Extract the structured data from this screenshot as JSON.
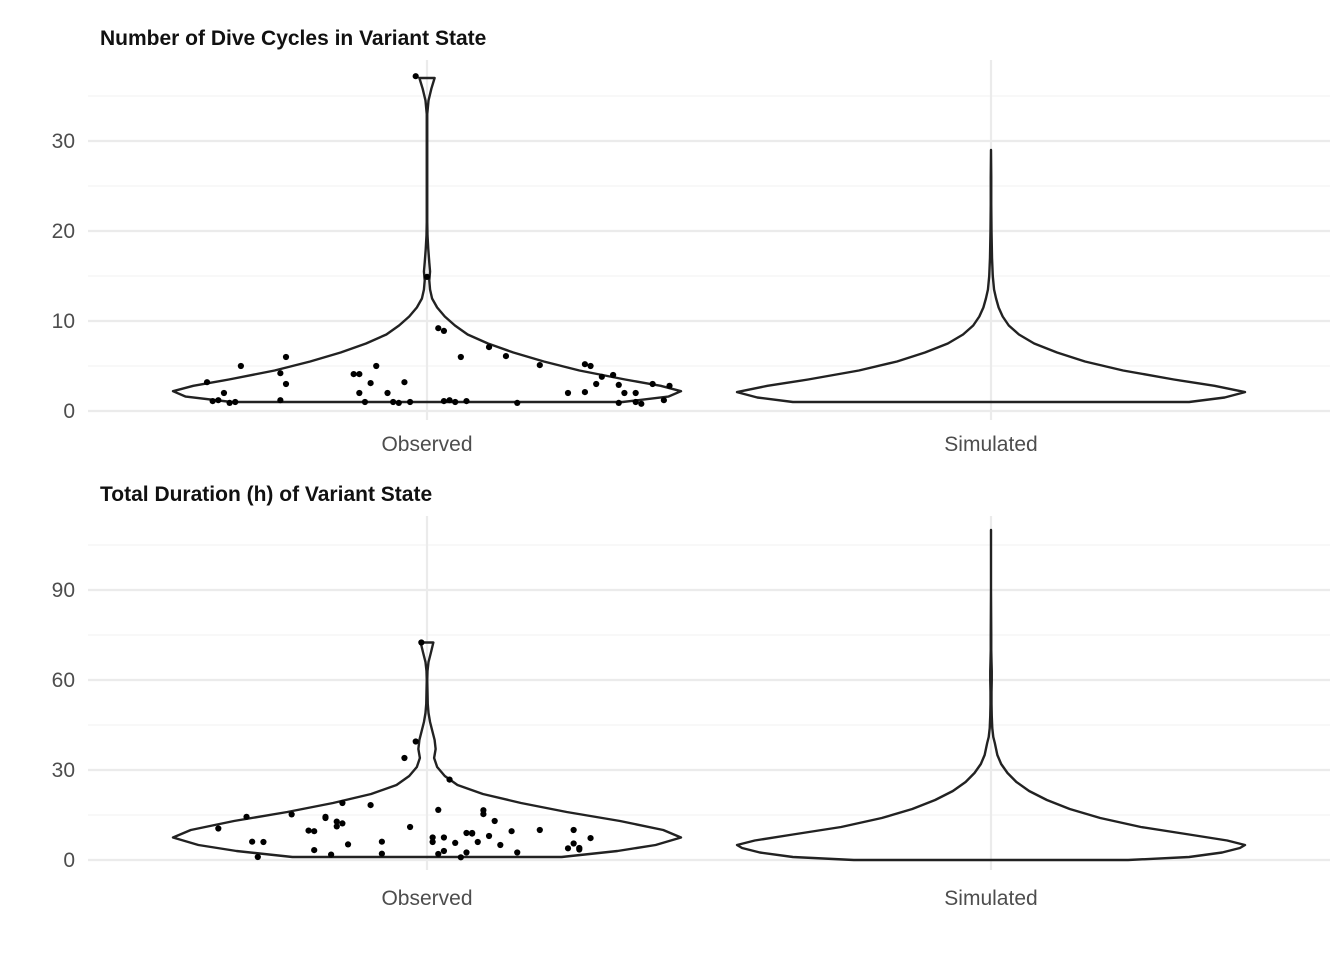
{
  "chart_data": [
    {
      "type": "violin",
      "title": "Number of Dive Cycles in Variant State",
      "xlabel": "",
      "ylabel": "",
      "categories": [
        "Observed",
        "Simulated"
      ],
      "ylim": [
        0,
        37
      ],
      "yticks": [
        0,
        10,
        20,
        30
      ],
      "grid": true,
      "legend": "none",
      "violins": [
        {
          "category": "Observed",
          "ymin": 1,
          "ymax": 37,
          "profile": [
            [
              1,
              0.77
            ],
            [
              1.6,
              0.95
            ],
            [
              2.2,
              1.0
            ],
            [
              2.8,
              0.92
            ],
            [
              3.5,
              0.78
            ],
            [
              4.5,
              0.6
            ],
            [
              5.5,
              0.46
            ],
            [
              6.5,
              0.34
            ],
            [
              7.5,
              0.24
            ],
            [
              8.5,
              0.16
            ],
            [
              9.5,
              0.11
            ],
            [
              10.5,
              0.07
            ],
            [
              11.5,
              0.04
            ],
            [
              12.5,
              0.02
            ],
            [
              13.5,
              0.012
            ],
            [
              14.5,
              0.009
            ],
            [
              15.5,
              0.012
            ],
            [
              16.5,
              0.009
            ],
            [
              18,
              0.005
            ],
            [
              19.5,
              0.002
            ],
            [
              21,
              0.001
            ],
            [
              25,
              0.001
            ],
            [
              30,
              0.001
            ],
            [
              33,
              0.001
            ],
            [
              34.5,
              0.006
            ],
            [
              35.8,
              0.017
            ],
            [
              37,
              0.03
            ]
          ]
        },
        {
          "category": "Simulated",
          "ymin": 1,
          "ymax": 29,
          "profile": [
            [
              1,
              0.78
            ],
            [
              1.5,
              0.92
            ],
            [
              2.1,
              1.0
            ],
            [
              2.8,
              0.88
            ],
            [
              3.5,
              0.72
            ],
            [
              4.5,
              0.52
            ],
            [
              5.5,
              0.37
            ],
            [
              6.5,
              0.26
            ],
            [
              7.5,
              0.17
            ],
            [
              8.5,
              0.11
            ],
            [
              9.5,
              0.07
            ],
            [
              10.5,
              0.046
            ],
            [
              11.5,
              0.03
            ],
            [
              12.5,
              0.02
            ],
            [
              13.5,
              0.012
            ],
            [
              15,
              0.007
            ],
            [
              17,
              0.004
            ],
            [
              20,
              0.002
            ],
            [
              23,
              0.001
            ],
            [
              26,
              0.001
            ],
            [
              29,
              0
            ]
          ]
        }
      ],
      "points": {
        "category": "Observed",
        "x": [
          -0.39,
          -0.38,
          -0.37,
          -0.36,
          -0.35,
          -0.34,
          -0.33,
          -0.26,
          -0.26,
          -0.25,
          -0.25,
          -0.13,
          -0.12,
          -0.12,
          -0.11,
          -0.1,
          -0.09,
          -0.07,
          -0.06,
          -0.05,
          -0.04,
          -0.03,
          -0.02,
          0.0,
          0.02,
          0.03,
          0.03,
          0.04,
          0.05,
          0.06,
          0.07,
          0.11,
          0.14,
          0.16,
          0.2,
          0.25,
          0.28,
          0.28,
          0.29,
          0.3,
          0.31,
          0.33,
          0.34,
          0.34,
          0.35,
          0.37,
          0.37,
          0.38,
          0.4,
          0.42,
          0.43
        ],
        "y": [
          3.2,
          1.1,
          1.2,
          2,
          0.9,
          1,
          5,
          4.2,
          1.2,
          3,
          6,
          4.1,
          4.1,
          2,
          1,
          3.1,
          5,
          2,
          1,
          0.9,
          3.2,
          1,
          37.2,
          14.9,
          9.2,
          8.9,
          1.1,
          1.2,
          1,
          6,
          1.1,
          7.1,
          6.1,
          0.9,
          5.1,
          2,
          2.1,
          5.2,
          5,
          3,
          3.8,
          4,
          2.9,
          0.9,
          2,
          2,
          1,
          0.8,
          3,
          1.2,
          2.8
        ]
      }
    },
    {
      "type": "violin",
      "title": "Total Duration (h) of Variant State",
      "xlabel": "",
      "ylabel": "",
      "categories": [
        "Observed",
        "Simulated"
      ],
      "ylim": [
        0,
        110
      ],
      "yticks": [
        0,
        30,
        60,
        90
      ],
      "grid": true,
      "legend": "none",
      "violins": [
        {
          "category": "Observed",
          "ymin": 1,
          "ymax": 72.5,
          "profile": [
            [
              1,
              0.53
            ],
            [
              3,
              0.75
            ],
            [
              5,
              0.9
            ],
            [
              7.5,
              1.0
            ],
            [
              10,
              0.93
            ],
            [
              13,
              0.76
            ],
            [
              16,
              0.55
            ],
            [
              19,
              0.37
            ],
            [
              22,
              0.22
            ],
            [
              25,
              0.12
            ],
            [
              28,
              0.07
            ],
            [
              31,
              0.04
            ],
            [
              34,
              0.028
            ],
            [
              37,
              0.034
            ],
            [
              40,
              0.03
            ],
            [
              43,
              0.021
            ],
            [
              46,
              0.012
            ],
            [
              49,
              0.006
            ],
            [
              52,
              0.003
            ],
            [
              56,
              0.002
            ],
            [
              60,
              0.001
            ],
            [
              63,
              0.002
            ],
            [
              66,
              0.006
            ],
            [
              69,
              0.015
            ],
            [
              72.5,
              0.025
            ]
          ]
        },
        {
          "category": "Simulated",
          "ymin": 0,
          "ymax": 110,
          "profile": [
            [
              0,
              0.54
            ],
            [
              1,
              0.78
            ],
            [
              2.5,
              0.91
            ],
            [
              4,
              0.98
            ],
            [
              5,
              1.0
            ],
            [
              6.5,
              0.93
            ],
            [
              8.5,
              0.78
            ],
            [
              11,
              0.59
            ],
            [
              14,
              0.43
            ],
            [
              17,
              0.31
            ],
            [
              20,
              0.22
            ],
            [
              23,
              0.15
            ],
            [
              26,
              0.1
            ],
            [
              29,
              0.065
            ],
            [
              32,
              0.04
            ],
            [
              35,
              0.025
            ],
            [
              37,
              0.02
            ],
            [
              39,
              0.015
            ],
            [
              41,
              0.009
            ],
            [
              44,
              0.005
            ],
            [
              48,
              0.003
            ],
            [
              52,
              0.002
            ],
            [
              56,
              0.002
            ],
            [
              60,
              0.003
            ],
            [
              63,
              0.003
            ],
            [
              66,
              0.002
            ],
            [
              70,
              0.001
            ],
            [
              75,
              0.001
            ],
            [
              90,
              0
            ],
            [
              110,
              0
            ]
          ]
        }
      ],
      "points": {
        "category": "Observed",
        "x": [
          -0.37,
          -0.32,
          -0.31,
          -0.3,
          -0.29,
          -0.24,
          -0.21,
          -0.2,
          -0.2,
          -0.18,
          -0.18,
          -0.17,
          -0.16,
          -0.16,
          -0.15,
          -0.15,
          -0.14,
          -0.1,
          -0.08,
          -0.08,
          -0.04,
          -0.03,
          -0.02,
          -0.01,
          0.01,
          0.01,
          0.02,
          0.02,
          0.03,
          0.03,
          0.04,
          0.05,
          0.06,
          0.07,
          0.07,
          0.08,
          0.08,
          0.09,
          0.1,
          0.1,
          0.11,
          0.12,
          0.13,
          0.15,
          0.16,
          0.2,
          0.25,
          0.26,
          0.26,
          0.27,
          0.27,
          0.29
        ],
        "y": [
          10.5,
          14.4,
          6.1,
          1,
          6,
          15.2,
          9.8,
          3.3,
          9.6,
          14,
          14.4,
          1.8,
          12.8,
          11.2,
          12.2,
          19,
          5.2,
          18.3,
          2.1,
          6.1,
          34,
          11,
          39.5,
          72.5,
          6,
          7.5,
          2,
          16.7,
          7.5,
          3,
          26.8,
          5.7,
          0.9,
          9,
          2.5,
          9,
          8.8,
          6,
          16.6,
          15.3,
          8,
          13,
          5,
          9.6,
          2.5,
          10,
          3.9,
          5.5,
          10,
          4,
          3.5,
          7.3
        ]
      }
    }
  ]
}
